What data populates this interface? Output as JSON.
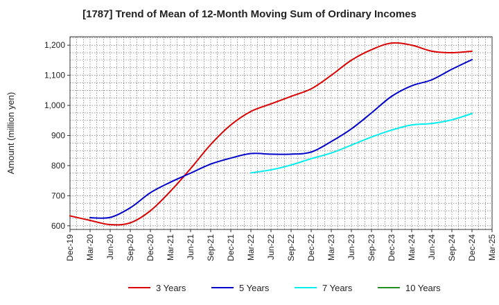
{
  "chart_data": {
    "type": "line",
    "title": "[1787]  Trend of Mean of 12-Month Moving Sum of Ordinary Incomes",
    "xlabel": "",
    "ylabel": "Amount (million yen)",
    "ylim": [
      588,
      1228
    ],
    "yticks": [
      600,
      700,
      800,
      900,
      1000,
      1100,
      1200
    ],
    "ytick_labels": [
      "600",
      "700",
      "800",
      "900",
      "1,000",
      "1,100",
      "1,200"
    ],
    "categories": [
      "Dec-19",
      "Mar-20",
      "Jun-20",
      "Sep-20",
      "Dec-20",
      "Mar-21",
      "Jun-21",
      "Sep-21",
      "Dec-21",
      "Mar-22",
      "Jun-22",
      "Sep-22",
      "Dec-22",
      "Mar-23",
      "Jun-23",
      "Sep-23",
      "Dec-23",
      "Mar-24",
      "Jun-24",
      "Sep-24",
      "Dec-24",
      "Mar-25"
    ],
    "grid": true,
    "legend_position": "bottom",
    "series": [
      {
        "name": "3 Years",
        "color": "#dd0000",
        "values": [
          633,
          618,
          604,
          610,
          650,
          715,
          790,
          870,
          935,
          980,
          1005,
          1030,
          1055,
          1100,
          1150,
          1185,
          1207,
          1200,
          1180,
          1175,
          1180,
          null
        ]
      },
      {
        "name": "5 Years",
        "color": "#0000cc",
        "values": [
          null,
          627,
          628,
          660,
          710,
          745,
          775,
          805,
          825,
          840,
          838,
          838,
          845,
          880,
          922,
          975,
          1030,
          1065,
          1085,
          1120,
          1152,
          null
        ]
      },
      {
        "name": "7 Years",
        "color": "#00eeee",
        "values": [
          null,
          null,
          null,
          null,
          null,
          null,
          null,
          null,
          null,
          776,
          786,
          802,
          823,
          842,
          868,
          895,
          918,
          935,
          940,
          952,
          973,
          null
        ]
      },
      {
        "name": "10 Years",
        "color": "#228b22",
        "values": [
          null,
          null,
          null,
          null,
          null,
          null,
          null,
          null,
          null,
          null,
          null,
          null,
          null,
          null,
          null,
          null,
          null,
          null,
          null,
          null,
          null,
          null
        ]
      }
    ]
  }
}
